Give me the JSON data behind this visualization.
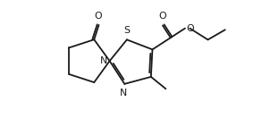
{
  "bg_color": "#ffffff",
  "line_color": "#1a1a1a",
  "line_width": 1.3,
  "font_size": 7.8,
  "fig_width": 3.12,
  "fig_height": 1.42,
  "dpi": 100,
  "xlim": [
    0.0,
    10.5
  ],
  "ylim": [
    0.5,
    5.0
  ]
}
